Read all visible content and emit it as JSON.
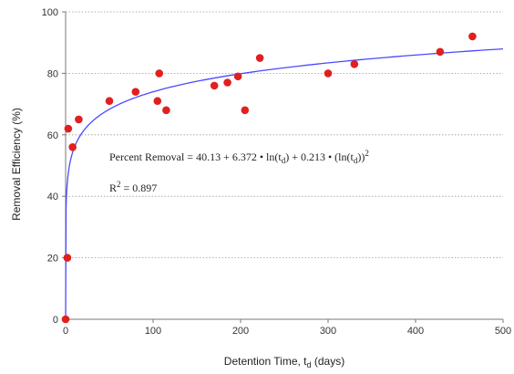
{
  "chart_data": {
    "type": "scatter",
    "xlabel_main": "Detention Time, t",
    "xlabel_sub": "d",
    "xlabel_unit": " (days)",
    "ylabel": "Removal Efficiency (%)",
    "xlim": [
      0,
      500
    ],
    "ylim": [
      0,
      100
    ],
    "xticks": [
      0,
      100,
      200,
      300,
      400,
      500
    ],
    "yticks": [
      0,
      20,
      40,
      60,
      80,
      100
    ],
    "grid": "horizontal-dotted",
    "series": [
      {
        "type": "scatter",
        "color": "#e02020",
        "points": [
          [
            0,
            0
          ],
          [
            2,
            20
          ],
          [
            3,
            62
          ],
          [
            8,
            56
          ],
          [
            15,
            65
          ],
          [
            50,
            71
          ],
          [
            80,
            74
          ],
          [
            105,
            71
          ],
          [
            107,
            80
          ],
          [
            115,
            68
          ],
          [
            170,
            76
          ],
          [
            185,
            77
          ],
          [
            197,
            79
          ],
          [
            205,
            68
          ],
          [
            222,
            85
          ],
          [
            300,
            80
          ],
          [
            330,
            83
          ],
          [
            428,
            87
          ],
          [
            465,
            92
          ]
        ]
      },
      {
        "type": "line",
        "color": "#4a4aff",
        "model": {
          "a": 40.13,
          "b": 6.372,
          "c": 0.213,
          "xmin": 0.5,
          "xmax": 500
        }
      }
    ],
    "annotations": {
      "equation_left": "Percent Removal = 40.13 + 6.372 • ln(t",
      "equation_mid": ") + 0.213 • (ln(t",
      "equation_right": "))",
      "equation_sub": "d",
      "equation_exp": "2",
      "r2_label": "R",
      "r2_exp": "2",
      "r2_value": " = 0.897"
    }
  }
}
